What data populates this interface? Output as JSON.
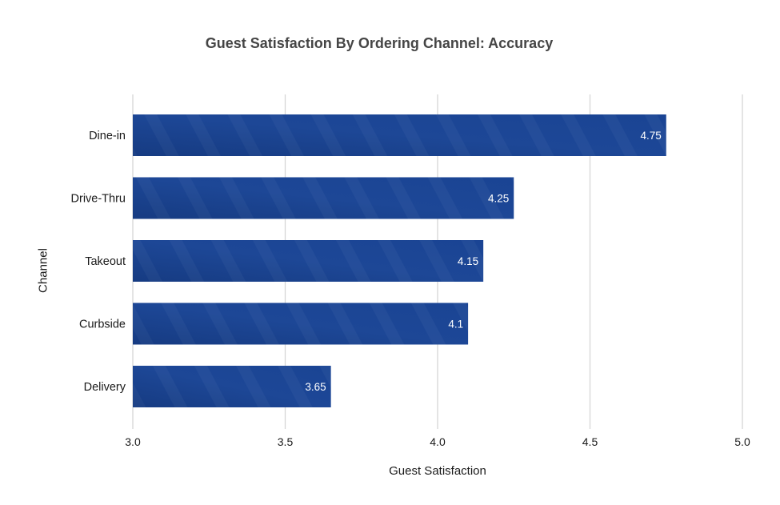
{
  "chart_data": {
    "type": "bar",
    "orientation": "horizontal",
    "title": "Guest Satisfaction By Ordering Channel: Accuracy",
    "xlabel": "Guest Satisfaction",
    "ylabel": "Channel",
    "categories": [
      "Dine-in",
      "Drive-Thru",
      "Takeout",
      "Curbside",
      "Delivery"
    ],
    "values": [
      4.75,
      4.25,
      4.15,
      4.1,
      3.65
    ],
    "data_labels": [
      "4.75",
      "4.25",
      "4.15",
      "4.1",
      "3.65"
    ],
    "xlim": [
      3.0,
      5.0
    ],
    "x_ticks": [
      3.0,
      3.5,
      4.0,
      4.5,
      5.0
    ],
    "x_tick_labels": [
      "3.0",
      "3.5",
      "4.0",
      "4.5",
      "5.0"
    ],
    "grid": true,
    "legend": "none",
    "colors": {
      "bar": "#1c4797",
      "bar_dark": "#163b82",
      "grid": "#d6d6d6",
      "data_label": "#ffffff",
      "tick_label": "#1a1a1a"
    }
  }
}
